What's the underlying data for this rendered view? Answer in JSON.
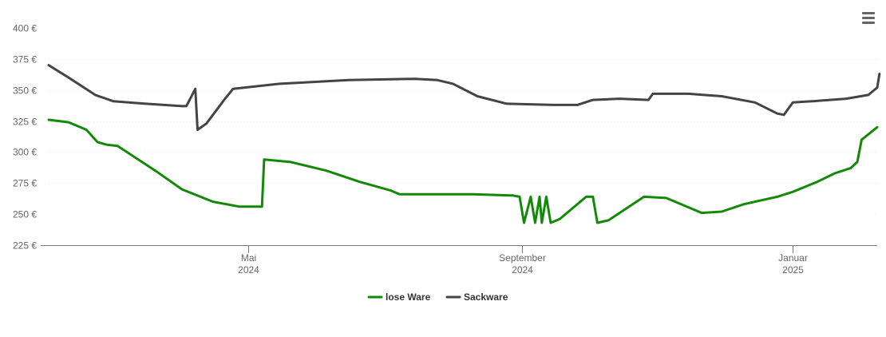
{
  "menu": {
    "icon": "hamburger-menu-icon"
  },
  "chart_data": {
    "type": "line",
    "title": "",
    "xlabel": "",
    "ylabel": "",
    "ylim": [
      225,
      400
    ],
    "y_ticks": [
      {
        "value": 225,
        "label": "225 €"
      },
      {
        "value": 250,
        "label": "250 €"
      },
      {
        "value": 275,
        "label": "275 €"
      },
      {
        "value": 300,
        "label": "300 €"
      },
      {
        "value": 325,
        "label": "325 €"
      },
      {
        "value": 350,
        "label": "350 €"
      },
      {
        "value": 375,
        "label": "375 €"
      },
      {
        "value": 400,
        "label": "400 €"
      }
    ],
    "xlim": [
      "2024-02-01",
      "2025-02-08"
    ],
    "x_ticks": [
      {
        "date": "2024-05-01",
        "month": "Mai",
        "year": "2024"
      },
      {
        "date": "2024-09-01",
        "month": "September",
        "year": "2024"
      },
      {
        "date": "2025-01-01",
        "month": "Januar",
        "year": "2025"
      }
    ],
    "grid": true,
    "legend_position": "bottom-center",
    "series": [
      {
        "name": "lose Ware",
        "color": "#138a07",
        "points": [
          [
            "2024-02-01",
            326
          ],
          [
            "2024-02-10",
            324
          ],
          [
            "2024-02-18",
            318
          ],
          [
            "2024-02-23",
            308
          ],
          [
            "2024-02-27",
            306
          ],
          [
            "2024-03-03",
            305
          ],
          [
            "2024-03-20",
            285
          ],
          [
            "2024-04-01",
            270
          ],
          [
            "2024-04-15",
            260
          ],
          [
            "2024-04-27",
            256
          ],
          [
            "2024-05-07",
            256
          ],
          [
            "2024-05-08",
            294
          ],
          [
            "2024-05-20",
            292
          ],
          [
            "2024-06-05",
            285
          ],
          [
            "2024-06-20",
            276
          ],
          [
            "2024-07-04",
            269
          ],
          [
            "2024-07-08",
            266
          ],
          [
            "2024-08-10",
            266
          ],
          [
            "2024-08-28",
            265
          ],
          [
            "2024-08-31",
            264
          ],
          [
            "2024-09-02",
            243
          ],
          [
            "2024-09-05",
            264
          ],
          [
            "2024-09-07",
            243
          ],
          [
            "2024-09-09",
            264
          ],
          [
            "2024-09-10",
            243
          ],
          [
            "2024-09-12",
            264
          ],
          [
            "2024-09-14",
            243
          ],
          [
            "2024-09-18",
            246
          ],
          [
            "2024-09-30",
            264
          ],
          [
            "2024-10-03",
            264
          ],
          [
            "2024-10-05",
            243
          ],
          [
            "2024-10-10",
            245
          ],
          [
            "2024-10-26",
            264
          ],
          [
            "2024-11-05",
            263
          ],
          [
            "2024-11-21",
            251
          ],
          [
            "2024-11-30",
            252
          ],
          [
            "2024-12-10",
            258
          ],
          [
            "2024-12-25",
            264
          ],
          [
            "2025-01-01",
            268
          ],
          [
            "2025-01-12",
            276
          ],
          [
            "2025-01-20",
            283
          ],
          [
            "2025-01-27",
            287
          ],
          [
            "2025-01-30",
            292
          ],
          [
            "2025-02-01",
            310
          ],
          [
            "2025-02-08",
            320
          ]
        ]
      },
      {
        "name": "Sackware",
        "color": "#434348",
        "points": [
          [
            "2024-02-01",
            370
          ],
          [
            "2024-02-10",
            360
          ],
          [
            "2024-02-22",
            346
          ],
          [
            "2024-03-01",
            341
          ],
          [
            "2024-03-15",
            339
          ],
          [
            "2024-04-01",
            337
          ],
          [
            "2024-04-03",
            337
          ],
          [
            "2024-04-07",
            351
          ],
          [
            "2024-04-08",
            318
          ],
          [
            "2024-04-12",
            323
          ],
          [
            "2024-04-20",
            342
          ],
          [
            "2024-04-24",
            351
          ],
          [
            "2024-05-15",
            355
          ],
          [
            "2024-06-15",
            358
          ],
          [
            "2024-07-15",
            359
          ],
          [
            "2024-07-25",
            358
          ],
          [
            "2024-08-01",
            355
          ],
          [
            "2024-08-12",
            345
          ],
          [
            "2024-08-25",
            339
          ],
          [
            "2024-09-15",
            338
          ],
          [
            "2024-09-26",
            338
          ],
          [
            "2024-10-03",
            342
          ],
          [
            "2024-10-15",
            343
          ],
          [
            "2024-10-28",
            342
          ],
          [
            "2024-10-30",
            347
          ],
          [
            "2024-11-15",
            347
          ],
          [
            "2024-11-30",
            345
          ],
          [
            "2024-12-15",
            340
          ],
          [
            "2024-12-25",
            331
          ],
          [
            "2024-12-28",
            330
          ],
          [
            "2025-01-01",
            340
          ],
          [
            "2025-01-10",
            341
          ],
          [
            "2025-01-25",
            343
          ],
          [
            "2025-02-04",
            346
          ],
          [
            "2025-02-08",
            352
          ],
          [
            "2025-02-09",
            363
          ]
        ]
      }
    ]
  }
}
